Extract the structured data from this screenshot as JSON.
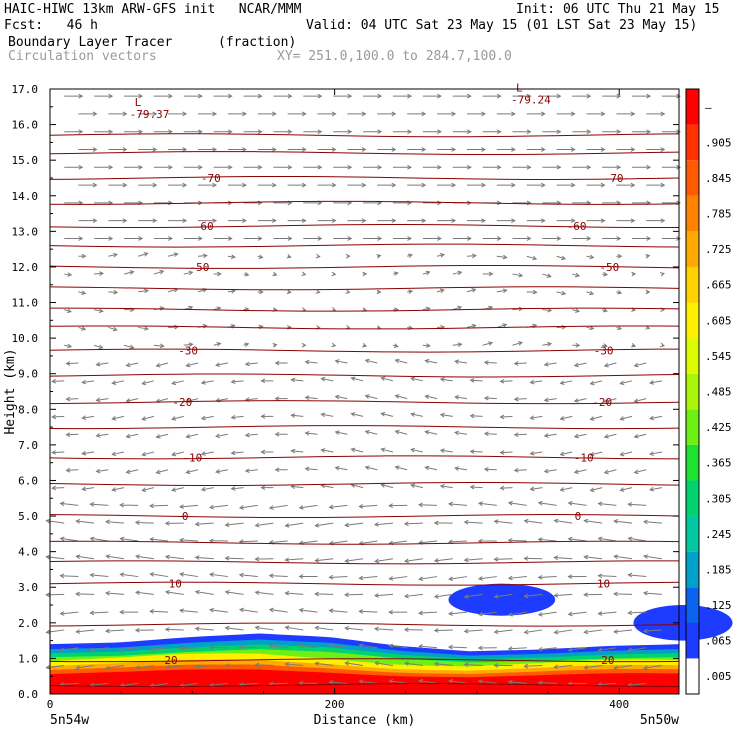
{
  "header": {
    "line1_left": "HAIC-HIWC 13km ARW-GFS init   NCAR/MMM",
    "line1_right": "Init: 06 UTC Thu 21 May 15",
    "line2_left": "Fcst:   46 h",
    "line2_right": "Valid: 04 UTC Sat 23 May 15 (01 LST Sat 23 May 15)",
    "line3_left": "Boundary Layer Tracer",
    "line3_mid": "(fraction)",
    "line4_left": "Circulation vectors",
    "line4_mid": "XY= 251.0,100.0 to 284.7,100.0"
  },
  "chart_data": {
    "type": "heatmap",
    "title": "Boundary Layer Tracer",
    "units": "(fraction)",
    "xlabel": "Distance (km)",
    "ylabel": "Height (km)",
    "xlim": [
      0,
      442
    ],
    "ylim": [
      0,
      17
    ],
    "x_ticks": [
      "0",
      "200",
      "400"
    ],
    "x_end_labels": {
      "left": "5n54w",
      "right": "5n50w"
    },
    "y_ticks": [
      "0.0",
      "1.0",
      "2.0",
      "3.0",
      "4.0",
      "5.0",
      "6.0",
      "7.0",
      "8.0",
      "9.0",
      "10.0",
      "11.0",
      "12.0",
      "13.0",
      "14.0",
      "15.0",
      "16.0",
      "17.0"
    ],
    "colorbar": {
      "labels": [
        ".005",
        ".065",
        ".125",
        ".185",
        ".245",
        ".305",
        ".365",
        ".425",
        ".485",
        ".545",
        ".605",
        ".665",
        ".725",
        ".785",
        ".845",
        ".905",
        "–"
      ],
      "colors": [
        "#ffffff",
        "#1e3cff",
        "#0a64f0",
        "#00a0c8",
        "#00c8a0",
        "#00d26e",
        "#1ee132",
        "#6ef014",
        "#aaf50a",
        "#dcfa00",
        "#fff000",
        "#ffd200",
        "#ffaa00",
        "#ff8200",
        "#ff5a00",
        "#ff3200",
        "#ff0000"
      ]
    },
    "temperature_contours_C": [
      {
        "label": "20",
        "x": [
          0,
          442
        ],
        "y": 0.25
      },
      {
        "label": "20",
        "x": [
          0,
          442
        ],
        "y": 0.95
      },
      {
        "label": "10",
        "x": [
          0,
          442
        ],
        "y": 1.95
      },
      {
        "label": "10",
        "x": [
          0,
          442
        ],
        "y": 3.1
      },
      {
        "label": "0",
        "x": [
          0,
          442
        ],
        "y": 5.0
      },
      {
        "label": "-10",
        "x": [
          0,
          442
        ],
        "y": 6.65
      },
      {
        "label": "-20",
        "x": [
          0,
          442
        ],
        "y": 8.2
      },
      {
        "label": "-30",
        "x": [
          0,
          442
        ],
        "y": 9.65
      },
      {
        "label": "-50",
        "x": [
          0,
          442
        ],
        "y": 12.0
      },
      {
        "label": "-60",
        "x": [
          0,
          442
        ],
        "y": 13.15
      },
      {
        "label": "-70",
        "x": [
          0,
          442
        ],
        "y": 14.5
      }
    ],
    "contour_labels": [
      {
        "text": "20",
        "x": 85,
        "y": 0.95
      },
      {
        "text": "20",
        "x": 392,
        "y": 0.95
      },
      {
        "text": "10",
        "x": 88,
        "y": 3.1
      },
      {
        "text": "10",
        "x": 389,
        "y": 3.1
      },
      {
        "text": "0",
        "x": 95,
        "y": 5.0
      },
      {
        "text": "0",
        "x": 371,
        "y": 5.0
      },
      {
        "text": "-10",
        "x": 100,
        "y": 6.65
      },
      {
        "text": "-10",
        "x": 375,
        "y": 6.65
      },
      {
        "text": "-20",
        "x": 93,
        "y": 8.2
      },
      {
        "text": "-20",
        "x": 388,
        "y": 8.2
      },
      {
        "text": "-30",
        "x": 97,
        "y": 9.65
      },
      {
        "text": "-30",
        "x": 389,
        "y": 9.65
      },
      {
        "text": "-50",
        "x": 105,
        "y": 12.0
      },
      {
        "text": "-50",
        "x": 393,
        "y": 12.0
      },
      {
        "text": "-60",
        "x": 108,
        "y": 13.15
      },
      {
        "text": "-60",
        "x": 370,
        "y": 13.15
      },
      {
        "text": "-70",
        "x": 113,
        "y": 14.5
      },
      {
        "text": "-70",
        "x": 396,
        "y": 14.5
      }
    ],
    "extrema": [
      {
        "mark": "L",
        "value": "-79.37",
        "x": 63,
        "y": 16.3
      },
      {
        "mark": "L",
        "value": "-79.24",
        "x": 331,
        "y": 16.7
      }
    ],
    "tracer_regions": [
      {
        "level": "surface layer",
        "x": [
          0,
          442
        ],
        "top_km": [
          1.4,
          1.45,
          1.6,
          1.7,
          1.6,
          1.35,
          1.2,
          1.25,
          1.35,
          1.4
        ]
      },
      {
        "level": "elevated blob",
        "x": [
          280,
          355
        ],
        "y": [
          2.2,
          3.1
        ]
      },
      {
        "level": "right edge blob",
        "x": [
          410,
          442
        ],
        "y": [
          1.5,
          2.5
        ]
      }
    ]
  }
}
